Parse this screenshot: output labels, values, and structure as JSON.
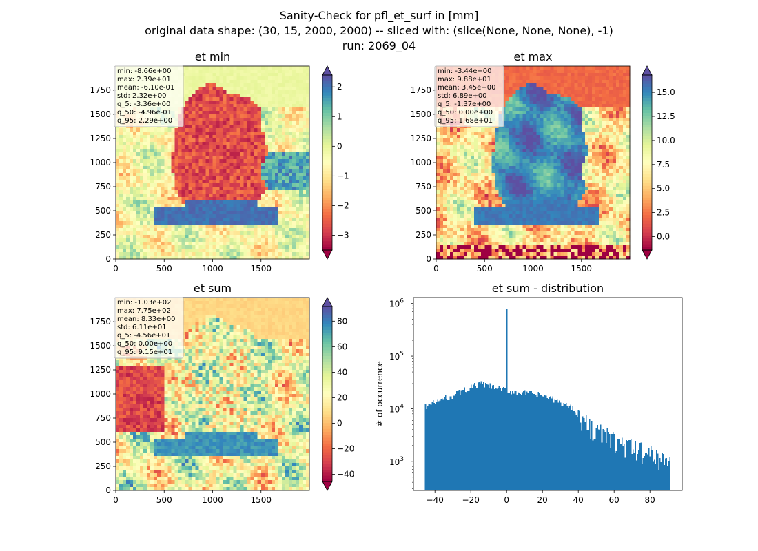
{
  "figure": {
    "suptitle": [
      "Sanity-Check for pfl_et_surf in [mm]",
      "original data shape: (30, 15, 2000, 2000) -- sliced with: (slice(None, None, None), -1)",
      "run: 2069_04"
    ]
  },
  "chart_data": [
    {
      "type": "heatmap",
      "title": "et min",
      "colormap": "Spectral",
      "xlim": [
        0,
        2000
      ],
      "ylim": [
        0,
        2000
      ],
      "xticks": [
        0,
        500,
        1000,
        1500
      ],
      "yticks": [
        0,
        250,
        500,
        750,
        1000,
        1250,
        1500,
        1750
      ],
      "colorbar": {
        "range": [
          -3.5,
          2.4
        ],
        "ticks": [
          2,
          1,
          0,
          -1,
          -2,
          -3
        ],
        "tick_labels": [
          "2",
          "1",
          "0",
          "−1",
          "−2",
          "−3"
        ]
      },
      "stats": [
        "min: -8.66e+00",
        "max: 2.39e+01",
        "mean: -6.10e-01",
        "std: 2.32e+00",
        "q_5: -3.36e+00",
        "q_50: -4.96e-01",
        "q_95: 2.29e+00"
      ]
    },
    {
      "type": "heatmap",
      "title": "et max",
      "colormap": "Spectral",
      "xlim": [
        0,
        2000
      ],
      "ylim": [
        0,
        2000
      ],
      "xticks": [
        0,
        500,
        1000,
        1500
      ],
      "yticks": [
        0,
        250,
        500,
        750,
        1000,
        1250,
        1500,
        1750
      ],
      "colorbar": {
        "range": [
          -1.4,
          16.8
        ],
        "ticks": [
          15.0,
          12.5,
          10.0,
          7.5,
          5.0,
          2.5,
          0.0
        ],
        "tick_labels": [
          "15.0",
          "12.5",
          "10.0",
          "7.5",
          "5.0",
          "2.5",
          "0.0"
        ]
      },
      "stats": [
        "min: -3.44e+00",
        "max: 9.88e+01",
        "mean: 3.45e+00",
        "std: 6.89e+00",
        "q_5: -1.37e+00",
        "q_50: 0.00e+00",
        "q_95: 1.68e+01"
      ]
    },
    {
      "type": "heatmap",
      "title": "et sum",
      "colormap": "Spectral",
      "xlim": [
        0,
        2000
      ],
      "ylim": [
        0,
        2000
      ],
      "xticks": [
        0,
        500,
        1000,
        1500
      ],
      "yticks": [
        0,
        250,
        500,
        750,
        1000,
        1250,
        1500,
        1750
      ],
      "colorbar": {
        "range": [
          -45.6,
          91.5
        ],
        "ticks": [
          80,
          60,
          40,
          20,
          0,
          -20,
          -40
        ],
        "tick_labels": [
          "80",
          "60",
          "40",
          "20",
          "0",
          "−20",
          "−40"
        ]
      },
      "stats": [
        "min: -1.03e+02",
        "max: 7.75e+02",
        "mean: 8.33e+00",
        "std: 6.11e+01",
        "q_5: -4.56e+01",
        "q_50: 0.00e+00",
        "q_95: 9.15e+01"
      ]
    },
    {
      "type": "bar",
      "title": "et sum - distribution",
      "ylabel": "# of occurrence",
      "xlabel": "",
      "yscale": "log",
      "xlim": [
        -52,
        98
      ],
      "ylim": [
        280,
        1300000
      ],
      "xticks": [
        -40,
        -20,
        0,
        20,
        40,
        60,
        80
      ],
      "xtick_labels": [
        "−40",
        "−20",
        "0",
        "20",
        "40",
        "60",
        "80"
      ],
      "yticks": [
        1000,
        10000,
        100000,
        1000000
      ],
      "color": "#1f77b4",
      "bins": {
        "start": -45.6,
        "end": 91.5,
        "count": 220
      },
      "envelope": [
        [
          -45.6,
          11000
        ],
        [
          -30,
          18000
        ],
        [
          -15,
          30000
        ],
        [
          0,
          22000
        ],
        [
          10,
          20000
        ],
        [
          20,
          18000
        ],
        [
          30,
          13000
        ],
        [
          38,
          10000
        ],
        [
          42,
          6000
        ],
        [
          50,
          4000
        ],
        [
          60,
          2500
        ],
        [
          70,
          1800
        ],
        [
          80,
          1400
        ],
        [
          91.5,
          1000
        ]
      ],
      "spike": {
        "x": 0,
        "y": 800000
      }
    }
  ]
}
